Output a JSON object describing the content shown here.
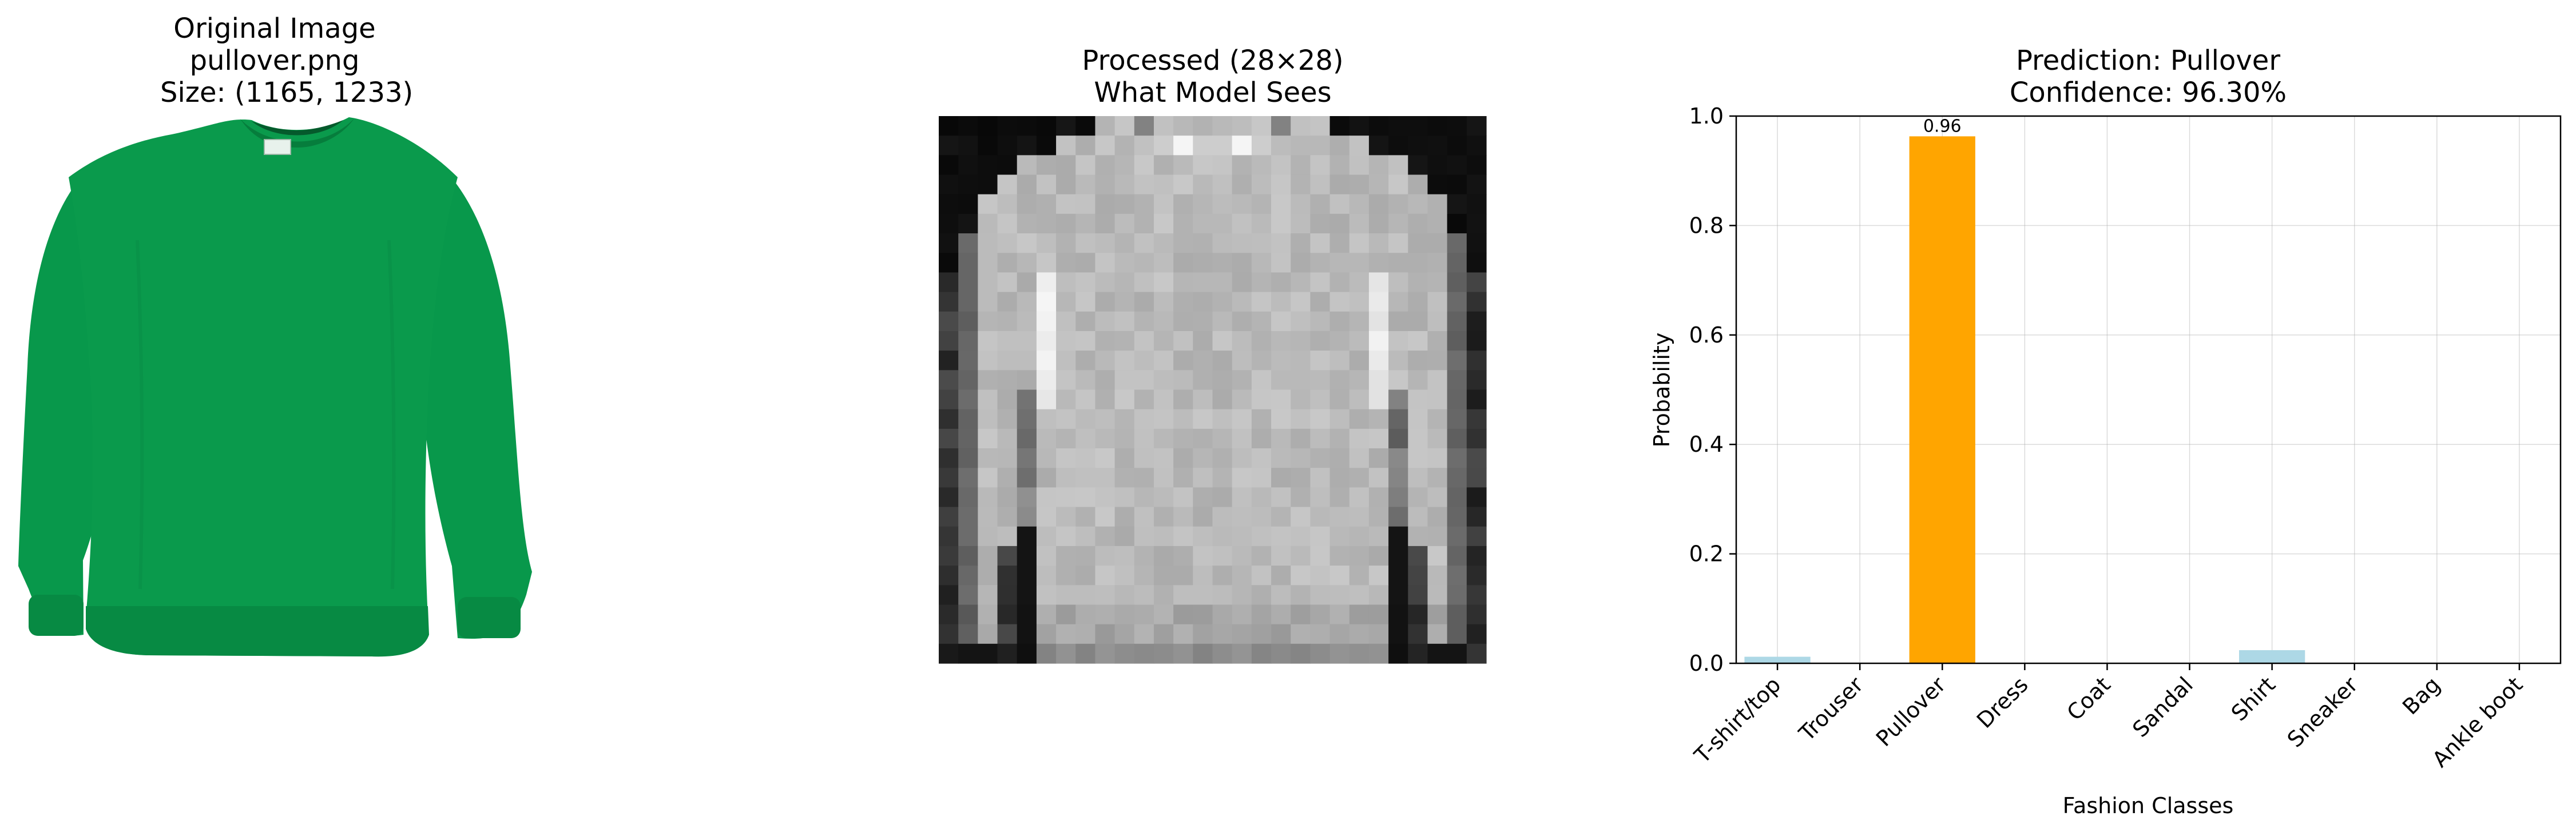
{
  "panels": {
    "original": {
      "title_lines": [
        "Original Image",
        "pullover.png",
        "Size: (1165, 1233)"
      ],
      "image_desc": "green-sweatshirt",
      "garment_color": "#0a9a4c"
    },
    "processed": {
      "title_lines": [
        "Processed (28×28)",
        "What Model Sees"
      ],
      "grid_size": 28
    },
    "prediction": {
      "title_lines": [
        "Prediction: Pullover",
        "Confidence: 96.30%"
      ]
    }
  },
  "chart_data": {
    "type": "bar",
    "title": "Prediction: Pullover\nConfidence: 96.30%",
    "xlabel": "Fashion Classes",
    "ylabel": "Probability",
    "ylim": [
      0,
      1.0
    ],
    "yticks": [
      "0.0",
      "0.2",
      "0.4",
      "0.6",
      "0.8",
      "1.0"
    ],
    "grid": true,
    "categories": [
      "T-shirt/top",
      "Trouser",
      "Pullover",
      "Dress",
      "Coat",
      "Sandal",
      "Shirt",
      "Sneaker",
      "Bag",
      "Ankle boot"
    ],
    "values": [
      0.012,
      0.0,
      0.963,
      0.0,
      0.0,
      0.0,
      0.024,
      0.0,
      0.0,
      0.0
    ],
    "data_labels": [
      {
        "index": 2,
        "text": "0.96"
      }
    ],
    "colors": {
      "default": "#add8e6",
      "highlight": "#ffa500"
    },
    "highlight_index": 2
  }
}
